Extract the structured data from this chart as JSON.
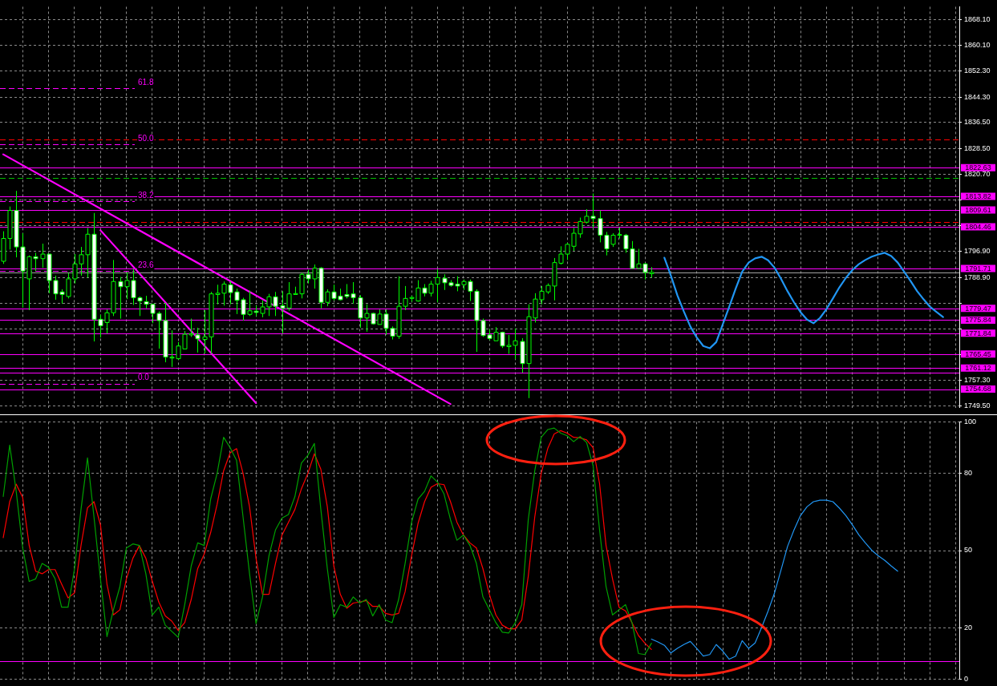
{
  "chart_data": [
    {
      "type": "candlestick",
      "categories": [
        null,
        null,
        null,
        null,
        null,
        null,
        null,
        null,
        null,
        null,
        null,
        null,
        null,
        null,
        null,
        null,
        null,
        null,
        null,
        null,
        null,
        null,
        null,
        null,
        null,
        null,
        null,
        null,
        null,
        null,
        null,
        null,
        null,
        null,
        null,
        null,
        null,
        null,
        null,
        null,
        null,
        null,
        null,
        null,
        null,
        null,
        null,
        null,
        null,
        null,
        null,
        null,
        null,
        null,
        null,
        null,
        null,
        null,
        null,
        null,
        null,
        null,
        null,
        null,
        null,
        null,
        null,
        null,
        null,
        null,
        null,
        null,
        null,
        null,
        null,
        null,
        null,
        null,
        null,
        null,
        null,
        null,
        null,
        null,
        null,
        null,
        null,
        null,
        null,
        null,
        null,
        null,
        null,
        null,
        null,
        null,
        null,
        null,
        null,
        null,
        null,
        null,
        null,
        null,
        null,
        null,
        null,
        null,
        null,
        null,
        null,
        null,
        null,
        null,
        null,
        null,
        null,
        null,
        null,
        null,
        null,
        null,
        null,
        null,
        null,
        null,
        null,
        null,
        null,
        null,
        null,
        null,
        null,
        null,
        null,
        null,
        null,
        null,
        null,
        null,
        null,
        null,
        null,
        null,
        null,
        null,
        null,
        null
      ],
      "ohlc": [
        [
          1793.9,
          1803.1,
          1793.1,
          1800.9
        ],
        [
          1800.9,
          1810.7,
          1797.5,
          1809.5
        ],
        [
          1809.5,
          1815.5,
          1795.1,
          1798.3
        ],
        [
          1798.3,
          1802.5,
          1779.7,
          1790.9
        ],
        [
          1788.5,
          1795.7,
          1778.9,
          1795.3
        ],
        [
          1795.3,
          1796.5,
          1790.9,
          1794.7
        ],
        [
          1794.7,
          1799.3,
          1791.9,
          1796.1
        ],
        [
          1796.1,
          1796.1,
          1784.1,
          1788.0
        ],
        [
          1788.0,
          1789.5,
          1782.1,
          1783.9
        ],
        [
          1784.5,
          1785.3,
          1780.9,
          1783.7
        ],
        [
          1783.1,
          1790.3,
          1782.5,
          1788.5
        ],
        [
          1788.5,
          1796.1,
          1787.1,
          1793.1
        ],
        [
          1793.1,
          1798.3,
          1789.5,
          1795.9
        ],
        [
          1795.9,
          1804.1,
          1788.9,
          1802.2
        ],
        [
          1802.2,
          1808.7,
          1769.3,
          1776.1
        ],
        [
          1776.1,
          1777.5,
          1770.5,
          1774.1
        ],
        [
          1775.1,
          1779.1,
          1771.7,
          1778.1
        ],
        [
          1778.1,
          1794.3,
          1777.1,
          1787.7
        ],
        [
          1787.7,
          1789.1,
          1776.3,
          1786.1
        ],
        [
          1786.1,
          1790.5,
          1782.3,
          1788.0
        ],
        [
          1788.0,
          1791.5,
          1780.5,
          1782.7
        ],
        [
          1782.7,
          1783.1,
          1777.1,
          1781.7
        ],
        [
          1781.5,
          1783.3,
          1779.5,
          1780.7
        ],
        [
          1780.7,
          1780.9,
          1774.9,
          1777.9
        ],
        [
          1777.9,
          1778.5,
          1767.1,
          1775.7
        ],
        [
          1775.7,
          1781.1,
          1762.9,
          1764.5
        ],
        [
          1764.2,
          1772.7,
          1761.5,
          1764.5
        ],
        [
          1764.0,
          1769.1,
          1763.7,
          1767.9
        ],
        [
          1767.0,
          1772.5,
          1767.0,
          1771.5
        ],
        [
          1771.3,
          1776.3,
          1770.7,
          1771.7
        ],
        [
          1771.3,
          1773.5,
          1765.9,
          1770.1
        ],
        [
          1769.9,
          1778.9,
          1765.7,
          1770.7
        ],
        [
          1770.7,
          1784.5,
          1765.5,
          1783.9
        ],
        [
          1783.7,
          1786.7,
          1780.7,
          1784.1
        ],
        [
          1784.1,
          1787.7,
          1780.3,
          1786.9
        ],
        [
          1786.7,
          1787.7,
          1780.7,
          1784.3
        ],
        [
          1784.5,
          1785.5,
          1777.7,
          1781.9
        ],
        [
          1782.1,
          1782.7,
          1775.7,
          1777.6
        ],
        [
          1777.6,
          1784.9,
          1777.1,
          1778.7
        ],
        [
          1778.6,
          1780.3,
          1777.1,
          1778.2
        ],
        [
          1777.9,
          1781.9,
          1776.7,
          1779.9
        ],
        [
          1779.9,
          1783.9,
          1777.1,
          1783.0
        ],
        [
          1783.0,
          1784.5,
          1777.1,
          1780.1
        ],
        [
          1780.3,
          1784.7,
          1771.7,
          1779.5
        ],
        [
          1779.5,
          1787.5,
          1778.7,
          1783.9
        ],
        [
          1783.7,
          1786.1,
          1783.7,
          1784.0
        ],
        [
          1783.9,
          1790.3,
          1782.5,
          1789.9
        ],
        [
          1789.9,
          1791.3,
          1787.1,
          1788.5
        ],
        [
          1788.5,
          1792.9,
          1785.5,
          1791.8
        ],
        [
          1791.8,
          1792.1,
          1779.5,
          1781.3
        ],
        [
          1781.3,
          1785.3,
          1780.1,
          1784.5
        ],
        [
          1784.5,
          1786.7,
          1781.9,
          1782.5
        ],
        [
          1783.2,
          1785.5,
          1781.9,
          1782.1
        ],
        [
          1783.7,
          1786.9,
          1782.5,
          1783.1
        ],
        [
          1783.9,
          1787.5,
          1780.9,
          1782.7
        ],
        [
          1782.7,
          1783.5,
          1773.5,
          1776.5
        ],
        [
          1776.5,
          1780.7,
          1772.3,
          1777.9
        ],
        [
          1777.9,
          1778.1,
          1774.5,
          1774.7
        ],
        [
          1774.5,
          1779.1,
          1774.5,
          1777.7
        ],
        [
          1777.7,
          1779.1,
          1771.3,
          1773.3
        ],
        [
          1773.3,
          1773.9,
          1769.9,
          1770.9
        ],
        [
          1770.9,
          1789.3,
          1770.1,
          1780.1
        ],
        [
          1780.1,
          1786.3,
          1778.9,
          1782.5
        ],
        [
          1782.5,
          1783.3,
          1781.5,
          1782.8
        ],
        [
          1781.7,
          1788.1,
          1781.5,
          1785.7
        ],
        [
          1785.7,
          1786.9,
          1783.1,
          1784.1
        ],
        [
          1784.1,
          1787.9,
          1783.1,
          1786.9
        ],
        [
          1786.9,
          1791.5,
          1781.3,
          1788.9
        ],
        [
          1788.7,
          1789.9,
          1785.1,
          1787.3
        ],
        [
          1787.3,
          1788.1,
          1786.1,
          1786.5
        ],
        [
          1786.9,
          1789.3,
          1784.7,
          1786.3
        ],
        [
          1786.7,
          1788.3,
          1785.1,
          1787.7
        ],
        [
          1787.7,
          1788.3,
          1781.7,
          1784.7
        ],
        [
          1784.7,
          1785.3,
          1766.1,
          1775.7
        ],
        [
          1775.7,
          1776.3,
          1770.7,
          1771.1
        ],
        [
          1771.3,
          1773.1,
          1769.7,
          1770.2
        ],
        [
          1769.5,
          1773.7,
          1769.5,
          1772.1
        ],
        [
          1772.1,
          1772.3,
          1767.3,
          1767.9
        ],
        [
          1767.7,
          1771.3,
          1765.5,
          1768.1
        ],
        [
          1768.1,
          1773.3,
          1763.9,
          1769.5
        ],
        [
          1769.3,
          1770.3,
          1759.7,
          1762.5
        ],
        [
          1762.5,
          1780.7,
          1751.9,
          1776.9
        ],
        [
          1776.5,
          1784.1,
          1775.1,
          1782.3
        ],
        [
          1782.1,
          1786.3,
          1780.7,
          1784.7
        ],
        [
          1784.5,
          1787.1,
          1783.9,
          1786.5
        ],
        [
          1786.3,
          1794.9,
          1781.9,
          1793.5
        ],
        [
          1793.3,
          1798.5,
          1792.9,
          1796.1
        ],
        [
          1796.1,
          1799.5,
          1794.3,
          1799.1
        ],
        [
          1798.5,
          1804.1,
          1797.1,
          1802.5
        ],
        [
          1802.3,
          1807.3,
          1801.1,
          1806.1
        ],
        [
          1805.9,
          1809.9,
          1805.5,
          1807.7
        ],
        [
          1807.7,
          1814.7,
          1804.1,
          1807.0
        ],
        [
          1807.0,
          1809.5,
          1799.7,
          1801.9
        ],
        [
          1801.9,
          1802.9,
          1795.7,
          1797.7
        ],
        [
          1799.1,
          1802.5,
          1798.3,
          1801.9
        ],
        [
          1801.9,
          1804.3,
          1800.9,
          1802.1
        ],
        [
          1801.9,
          1802.3,
          1796.5,
          1797.7
        ],
        [
          1797.7,
          1800.1,
          1791.7,
          1791.7
        ],
        [
          1791.7,
          1797.7,
          1791.7,
          1793.1
        ],
        [
          1793.1,
          1793.3,
          1788.3,
          1790.5
        ],
        [
          1790.1,
          1792.1,
          1788.9,
          1790.5
        ],
        null,
        null,
        null,
        null,
        null,
        null,
        null,
        null,
        null,
        null,
        null,
        null,
        null,
        null,
        null,
        null,
        null,
        null,
        null,
        null,
        null,
        null,
        null,
        null,
        null,
        null,
        null,
        null,
        null,
        null,
        null,
        null,
        null,
        null,
        null,
        null,
        null,
        null,
        null,
        null,
        null,
        null,
        null,
        null,
        null,
        null,
        null
      ],
      "series": [
        {
          "type": "line",
          "color": "#ff00ff",
          "values": [
            1826.7,
            null,
            null,
            null,
            null,
            null,
            null,
            null,
            null,
            null,
            null,
            null,
            null,
            null,
            null,
            null,
            null,
            null,
            null,
            null,
            null,
            null,
            null,
            null,
            null,
            null,
            null,
            null,
            null,
            null,
            null,
            null,
            null,
            null,
            null,
            null,
            null,
            null,
            null,
            null,
            null,
            null,
            null,
            null,
            null,
            null,
            null,
            null,
            null,
            null,
            null,
            null,
            null,
            null,
            null,
            null,
            null,
            null,
            null,
            null,
            null,
            null,
            null,
            null,
            null,
            null,
            null,
            null,
            null,
            1750.1,
            null,
            null,
            null,
            null,
            null,
            null,
            null,
            null,
            null,
            null,
            null,
            null,
            null,
            null,
            null,
            null,
            null,
            null,
            null,
            null,
            null,
            null,
            null,
            null,
            null,
            null,
            null,
            null,
            null,
            null,
            null,
            null,
            null,
            null,
            null,
            null,
            null,
            null,
            null,
            null,
            null,
            null,
            null,
            null,
            null,
            null,
            null,
            null,
            null,
            null,
            null,
            null,
            null,
            null,
            null,
            null,
            null,
            null,
            null,
            null,
            null,
            null,
            null,
            null,
            null,
            null,
            null,
            null,
            null,
            null,
            null,
            null,
            null,
            null,
            null,
            null,
            null,
            null
          ]
        },
        {
          "type": "line",
          "color": "#ff00ff",
          "values": [
            null,
            null,
            null,
            null,
            null,
            null,
            null,
            null,
            null,
            null,
            null,
            null,
            null,
            null,
            null,
            1803.4,
            null,
            null,
            null,
            null,
            null,
            null,
            null,
            null,
            null,
            null,
            null,
            null,
            null,
            null,
            null,
            null,
            null,
            null,
            null,
            null,
            null,
            null,
            null,
            1750.4,
            null,
            null,
            null,
            null,
            null,
            null,
            null,
            null,
            null,
            null,
            null,
            null,
            null,
            null,
            null,
            null,
            null,
            null,
            null,
            null,
            null,
            null,
            null,
            null,
            null,
            null,
            null,
            null,
            null,
            null,
            null,
            null,
            null,
            null,
            null,
            null,
            null,
            null,
            null,
            null,
            null,
            null,
            null,
            null,
            null,
            null,
            null,
            null,
            null,
            null,
            null,
            null,
            null,
            null,
            null,
            null,
            null,
            null,
            null,
            null,
            null,
            null,
            null,
            null,
            null,
            null,
            null,
            null,
            null,
            null,
            null,
            null,
            null,
            null,
            null,
            null,
            null,
            null,
            null,
            null,
            null,
            null,
            null,
            null,
            null,
            null,
            null,
            null,
            null,
            null,
            null,
            null,
            null,
            null,
            null,
            null,
            null,
            null,
            null,
            null,
            null,
            null,
            null,
            null,
            null,
            null,
            null,
            null
          ]
        },
        {
          "type": "line",
          "color": "#2196f3",
          "values": [
            null,
            null,
            null,
            null,
            null,
            null,
            null,
            null,
            null,
            null,
            null,
            null,
            null,
            null,
            null,
            null,
            null,
            null,
            null,
            null,
            null,
            null,
            null,
            null,
            null,
            null,
            null,
            null,
            null,
            null,
            null,
            null,
            null,
            null,
            null,
            null,
            null,
            null,
            null,
            null,
            null,
            null,
            null,
            null,
            null,
            null,
            null,
            null,
            null,
            null,
            null,
            null,
            null,
            null,
            null,
            null,
            null,
            null,
            null,
            null,
            null,
            null,
            null,
            null,
            null,
            null,
            null,
            null,
            null,
            null,
            null,
            null,
            null,
            null,
            null,
            null,
            null,
            null,
            null,
            null,
            null,
            null,
            null,
            null,
            null,
            null,
            null,
            null,
            null,
            null,
            null,
            null,
            null,
            null,
            null,
            null,
            null,
            null,
            null,
            null,
            null,
            null,
            1795.0,
            1789.5,
            1783.5,
            1778.5,
            1773.9,
            1770.5,
            1767.9,
            1767.2,
            1769.1,
            1774.5,
            1779.9,
            1785.5,
            1790.7,
            1793.5,
            1794.8,
            1795.3,
            1794.2,
            1791.9,
            1788.5,
            1784.7,
            1781.3,
            1778.3,
            1776.0,
            1774.9,
            1776.5,
            1779.2,
            1782.5,
            1785.9,
            1788.8,
            1791.2,
            1793.0,
            1794.3,
            1795.3,
            1796.0,
            1796.5,
            1795.5,
            1793.5,
            1790.7,
            1787.8,
            1784.7,
            1782.2,
            1779.9,
            1778.3,
            1776.8,
            null,
            null
          ]
        }
      ],
      "ylim": [
        1749,
        1872
      ],
      "yticks": [
        {
          "value": 1868.1,
          "label": "1868.10"
        },
        {
          "value": 1860.1,
          "label": "1860.10"
        },
        {
          "value": 1852.3,
          "label": "1852.30"
        },
        {
          "value": 1844.3,
          "label": "1844.30"
        },
        {
          "value": 1836.5,
          "label": "1836.50"
        },
        {
          "value": 1828.5,
          "label": "1828.50"
        },
        {
          "value": 1820.7,
          "label": "1820.70"
        },
        {
          "value": 1812.7,
          "label": null
        },
        {
          "value": 1804.9,
          "label": null
        },
        {
          "value": 1796.9,
          "label": "1796.90"
        },
        {
          "value": 1788.9,
          "label": "1788.90"
        },
        {
          "value": 1781.1,
          "label": null
        },
        {
          "value": 1773.1,
          "label": null
        },
        {
          "value": 1765.3,
          "label": null
        },
        {
          "value": 1757.3,
          "label": "1757.30"
        },
        {
          "value": 1749.5,
          "label": "1749.50"
        }
      ],
      "ref_lines": [
        {
          "axis": "y",
          "value": 1822.63,
          "label": "1822.63",
          "color": "#ff00ff",
          "line_style": "solid"
        },
        {
          "axis": "y",
          "value": 1813.82,
          "label": "1813.82",
          "color": "#ff00ff",
          "line_style": "solid"
        },
        {
          "axis": "y",
          "value": 1809.61,
          "label": "1809.61",
          "color": "#ff00ff",
          "line_style": "solid"
        },
        {
          "axis": "y",
          "value": 1804.46,
          "label": "1804.46",
          "color": "#ff00ff",
          "line_style": "solid"
        },
        {
          "axis": "y",
          "value": 1791.71,
          "label": "1791.71",
          "color": "#ff00ff",
          "line_style": "solid"
        },
        {
          "axis": "y",
          "value": 1779.47,
          "label": "1779.47",
          "color": "#ff00ff",
          "line_style": "solid"
        },
        {
          "axis": "y",
          "value": 1775.84,
          "label": "1775.84",
          "color": "#ff00ff",
          "line_style": "solid"
        },
        {
          "axis": "y",
          "value": 1771.84,
          "label": "1771.84",
          "color": "#ff00ff",
          "line_style": "solid"
        },
        {
          "axis": "y",
          "value": 1765.45,
          "label": "1765.45",
          "color": "#ff00ff",
          "line_style": "solid"
        },
        {
          "axis": "y",
          "value": 1761.12,
          "label": "1761.12",
          "color": "#ff00ff",
          "line_style": "solid"
        },
        {
          "axis": "y",
          "value": 1759.83,
          "color": "#ff00ff",
          "line_style": "solid"
        },
        {
          "axis": "y",
          "value": 1754.68,
          "label": "1754.68",
          "color": "#ff00ff",
          "line_style": "solid"
        },
        {
          "axis": "y",
          "value": 1790.5,
          "color": "#a0a0a0",
          "line_style": "solid"
        },
        {
          "axis": "y",
          "value": 1831.2,
          "color": "#ff0000",
          "line_style": "dashed"
        },
        {
          "axis": "y",
          "value": 1806.0,
          "color": "#ff0000",
          "line_style": "dashed"
        },
        {
          "axis": "y",
          "value": 1819.5,
          "color": "#00c000",
          "line_style": "dashed"
        },
        {
          "axis": "y",
          "value": 1847.0,
          "color": "#ff00ff",
          "line_style": "dashed"
        },
        {
          "axis": "y",
          "value": 1829.8,
          "color": "#ff00ff",
          "line_style": "dashed"
        },
        {
          "axis": "y",
          "value": 1812.3,
          "color": "#ff00ff",
          "line_style": "dashed"
        },
        {
          "axis": "y",
          "value": 1790.9,
          "color": "#ff00ff",
          "line_style": "dashed"
        },
        {
          "axis": "y",
          "value": 1756.4,
          "color": "#ff00ff",
          "line_style": "dashed"
        }
      ],
      "annotations": [
        "61.8",
        "50.0",
        "38.2",
        "23.6",
        "0.0"
      ],
      "grid": true,
      "legend": false,
      "tick_labels": "y"
    },
    {
      "type": "line",
      "categories": [
        null,
        null,
        null,
        null,
        null,
        null,
        null,
        null,
        null,
        null,
        null,
        null,
        null,
        null,
        null,
        null,
        null,
        null,
        null,
        null,
        null,
        null,
        null,
        null,
        null,
        null,
        null,
        null,
        null,
        null,
        null,
        null,
        null,
        null,
        null,
        null,
        null,
        null,
        null,
        null,
        null,
        null,
        null,
        null,
        null,
        null,
        null,
        null,
        null,
        null,
        null,
        null,
        null,
        null,
        null,
        null,
        null,
        null,
        null,
        null,
        null,
        null,
        null,
        null,
        null,
        null,
        null,
        null,
        null,
        null,
        null,
        null,
        null,
        null,
        null,
        null,
        null,
        null,
        null,
        null,
        null,
        null,
        null,
        null,
        null,
        null,
        null,
        null,
        null,
        null,
        null,
        null,
        null,
        null,
        null,
        null,
        null,
        null,
        null,
        null,
        null,
        null,
        null,
        null,
        null,
        null,
        null,
        null,
        null,
        null,
        null,
        null,
        null,
        null,
        null,
        null,
        null,
        null,
        null,
        null,
        null,
        null,
        null,
        null,
        null,
        null,
        null,
        null,
        null,
        null,
        null,
        null,
        null,
        null,
        null,
        null,
        null,
        null,
        null,
        null,
        null,
        null,
        null,
        null,
        null,
        null,
        null,
        null
      ],
      "series": [
        {
          "color": "#00a000",
          "values": [
            71,
            91,
            73,
            51,
            38,
            39,
            45,
            43.5,
            39,
            28,
            28,
            43,
            66,
            86,
            63,
            39,
            16.6,
            27,
            36,
            51,
            52.6,
            52,
            41,
            25,
            28,
            21,
            18.6,
            16.3,
            29,
            44,
            53,
            52,
            70,
            80,
            94,
            90,
            85,
            63,
            41,
            21.6,
            32,
            48,
            58,
            62.6,
            64,
            71,
            84,
            87,
            91.6,
            66,
            43,
            24,
            29,
            28,
            32,
            29.6,
            31,
            24.6,
            29,
            23,
            22,
            31,
            45,
            61,
            70,
            73,
            79,
            76.6,
            72,
            62,
            54,
            56,
            52,
            45,
            32,
            27,
            22,
            18.3,
            18,
            22,
            29,
            62,
            81,
            94,
            97,
            97.6,
            95.6,
            94.6,
            92.3,
            94.3,
            92,
            83,
            58,
            36,
            25,
            27,
            29,
            22,
            10,
            9.6,
            14,
            null,
            null,
            null,
            null,
            null,
            null,
            null,
            null,
            null,
            null,
            null,
            null,
            null,
            null,
            null,
            null,
            null,
            null,
            null,
            null,
            null,
            null,
            null,
            null,
            null,
            null,
            null,
            null,
            null,
            null,
            null,
            null,
            null,
            null,
            null,
            null,
            null,
            null,
            null,
            null,
            null,
            null,
            null,
            null,
            null,
            null,
            null
          ]
        },
        {
          "color": "#ff0000",
          "values": [
            55,
            69,
            75.8,
            70.6,
            52,
            42,
            41,
            42.6,
            42.6,
            37,
            31.6,
            33.6,
            52,
            66.6,
            69,
            60,
            37,
            25,
            27,
            39,
            47,
            51.9,
            47,
            38,
            30,
            24.6,
            22.6,
            19,
            22,
            31,
            43,
            48.6,
            57,
            68,
            81,
            88,
            89.6,
            80,
            67,
            47,
            33,
            33,
            45,
            56,
            61,
            66,
            74,
            80,
            87.6,
            81.6,
            67,
            44,
            33,
            27.6,
            29.6,
            30,
            30.6,
            28.3,
            28.3,
            25.6,
            25,
            25.6,
            34,
            48,
            60.6,
            69,
            74.6,
            76,
            75.6,
            69,
            61,
            56,
            53,
            51,
            43,
            33,
            25,
            21,
            19.6,
            19.6,
            23,
            40,
            63,
            80,
            89.6,
            95.3,
            96.6,
            95.6,
            94,
            93.8,
            93,
            90,
            76,
            52,
            39,
            28,
            26.6,
            22,
            17,
            14,
            11.6,
            null,
            null,
            null,
            null,
            null,
            null,
            null,
            null,
            null,
            null,
            null,
            null,
            null,
            null,
            null,
            null,
            null,
            null,
            null,
            null,
            null,
            null,
            null,
            null,
            null,
            null,
            null,
            null,
            null,
            null,
            null,
            null,
            null,
            null,
            null,
            null,
            null,
            null,
            null,
            null,
            null,
            null,
            null,
            null,
            null,
            null,
            null
          ]
        },
        {
          "color": "#2196f3",
          "values": [
            null,
            null,
            null,
            null,
            null,
            null,
            null,
            null,
            null,
            null,
            null,
            null,
            null,
            null,
            null,
            null,
            null,
            null,
            null,
            null,
            null,
            null,
            null,
            null,
            null,
            null,
            null,
            null,
            null,
            null,
            null,
            null,
            null,
            null,
            null,
            null,
            null,
            null,
            null,
            null,
            null,
            null,
            null,
            null,
            null,
            null,
            null,
            null,
            null,
            null,
            null,
            null,
            null,
            null,
            null,
            null,
            null,
            null,
            null,
            null,
            null,
            null,
            null,
            null,
            null,
            null,
            null,
            null,
            null,
            null,
            null,
            null,
            null,
            null,
            null,
            null,
            null,
            null,
            null,
            null,
            null,
            null,
            null,
            null,
            null,
            null,
            null,
            null,
            null,
            null,
            null,
            null,
            null,
            null,
            null,
            null,
            null,
            null,
            null,
            null,
            15.6,
            14.5,
            13.2,
            10.2,
            12,
            13.5,
            14.7,
            12,
            9,
            9.6,
            13.5,
            11,
            7.8,
            9,
            15,
            12,
            14.1,
            20.1,
            26.5,
            33.6,
            42.5,
            51.6,
            58,
            63.6,
            67,
            69,
            69.6,
            69.6,
            69,
            66.5,
            63.6,
            60,
            56.1,
            53,
            50.1,
            48,
            46.2,
            44,
            42,
            null,
            null,
            null,
            null,
            null,
            null,
            null,
            null,
            null
          ]
        }
      ],
      "ylim": [
        0,
        100
      ],
      "yticks": [
        100,
        80,
        50,
        20,
        0
      ],
      "ref_lines": [
        {
          "axis": "y",
          "value": 7,
          "color": "#ff00ff",
          "line_style": "solid"
        }
      ],
      "grid": true,
      "legend": false,
      "tick_labels": "y"
    }
  ]
}
